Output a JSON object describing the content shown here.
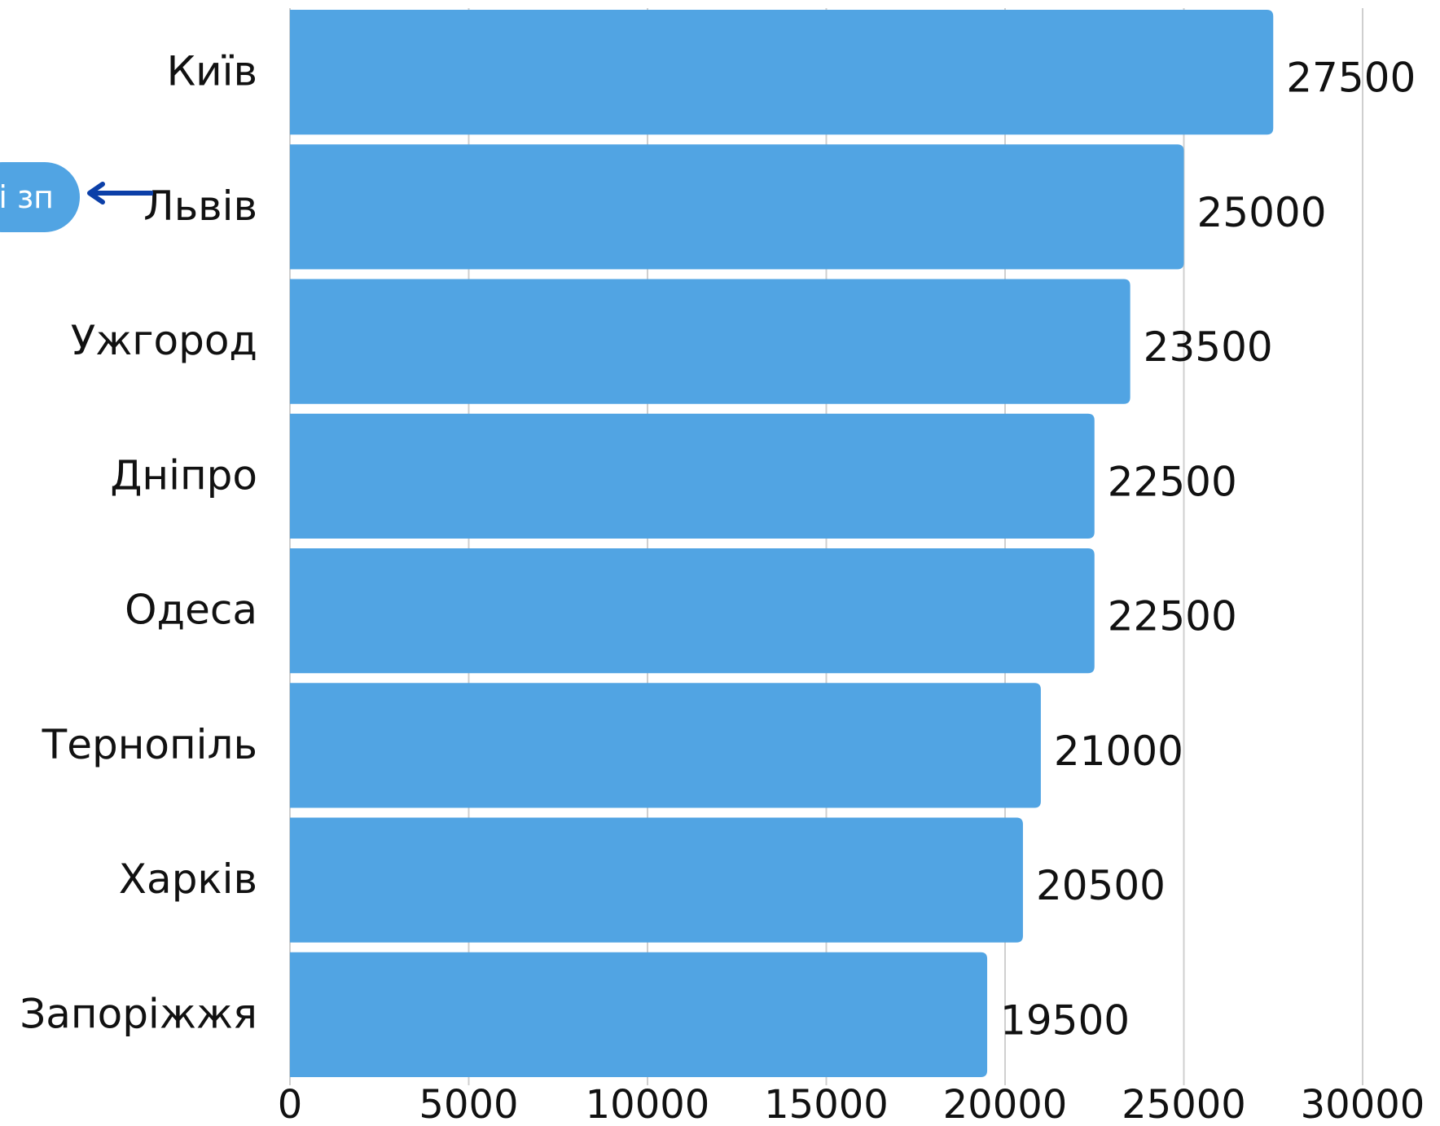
{
  "chart_data": {
    "type": "bar",
    "orientation": "horizontal",
    "categories": [
      "Київ",
      "Львів",
      "Ужгород",
      "Дніпро",
      "Одеса",
      "Тернопіль",
      "Харків",
      "Запоріжжя"
    ],
    "values": [
      27500,
      25000,
      23500,
      22500,
      22500,
      21000,
      20500,
      19500
    ],
    "xlim": [
      0,
      30000
    ],
    "xticks": [
      "0",
      "5000",
      "10000",
      "15000",
      "20000",
      "25000",
      "30000"
    ],
    "grid": "vertical",
    "bar_color": "#51a4e3",
    "data_labels": true
  },
  "callout": {
    "text": "і зп",
    "color": "#51a4e3",
    "arrow_color": "#0b3fa8",
    "points_to": "Львів"
  }
}
